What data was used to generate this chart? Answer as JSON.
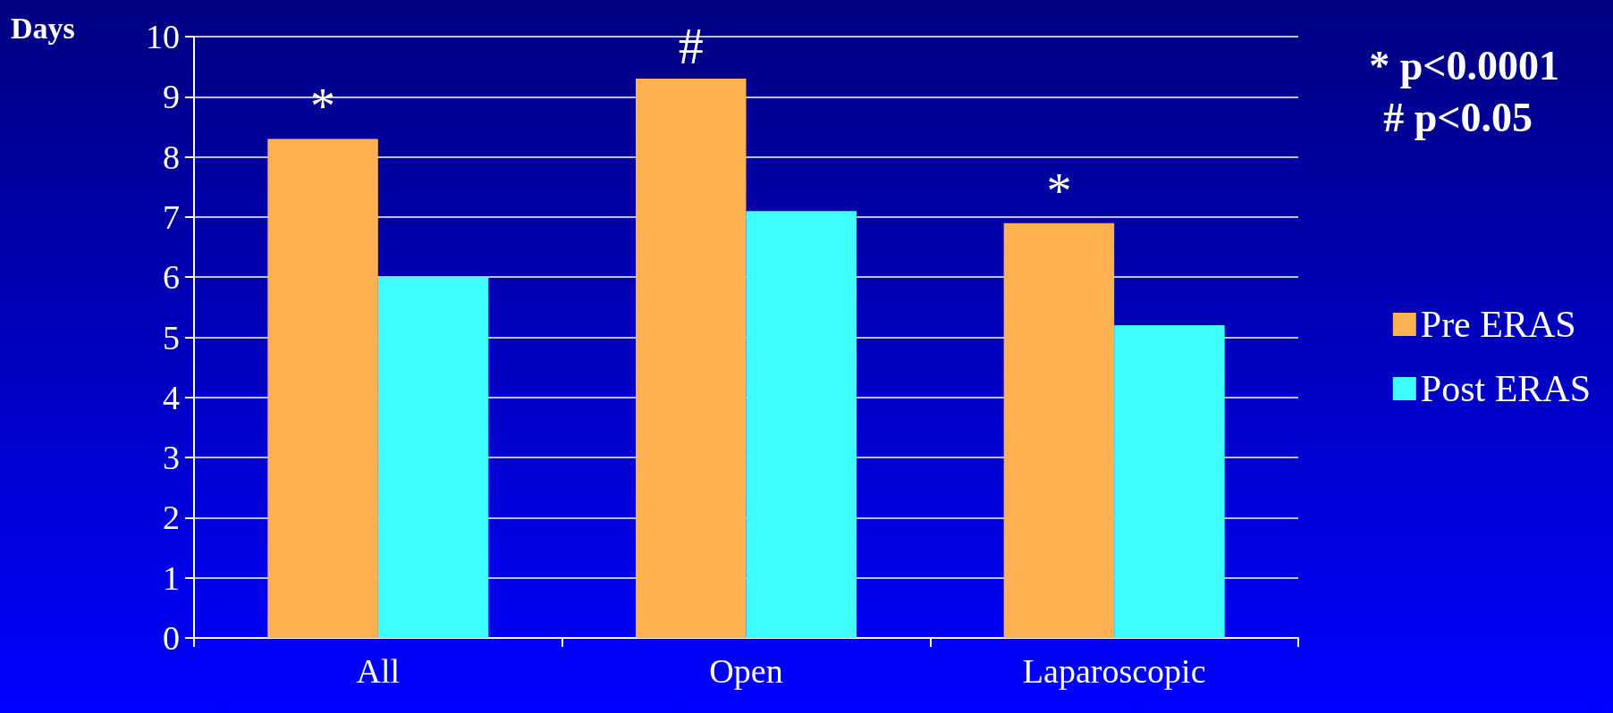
{
  "chart_data": {
    "type": "bar",
    "ylabel": "Days",
    "categories": [
      "All",
      "Open",
      "Laparoscopic"
    ],
    "series": [
      {
        "name": "Pre ERAS",
        "color": "#ffb050",
        "values": [
          8.3,
          9.3,
          6.9
        ]
      },
      {
        "name": "Post ERAS",
        "color": "#40ffff",
        "values": [
          6.0,
          7.1,
          5.2
        ]
      }
    ],
    "ylim": [
      0,
      10
    ],
    "yticks": [
      0,
      1,
      2,
      3,
      4,
      5,
      6,
      7,
      8,
      9,
      10
    ],
    "grid": "y",
    "legend": "right",
    "annotations": [
      {
        "text": "*",
        "x": "All",
        "y": 8.3
      },
      {
        "text": "#",
        "x": "Open",
        "y": 9.3
      },
      {
        "text": "*",
        "x": "Laparoscopic",
        "y": 6.9
      },
      "* p<0.0001",
      "# p<0.05"
    ]
  }
}
